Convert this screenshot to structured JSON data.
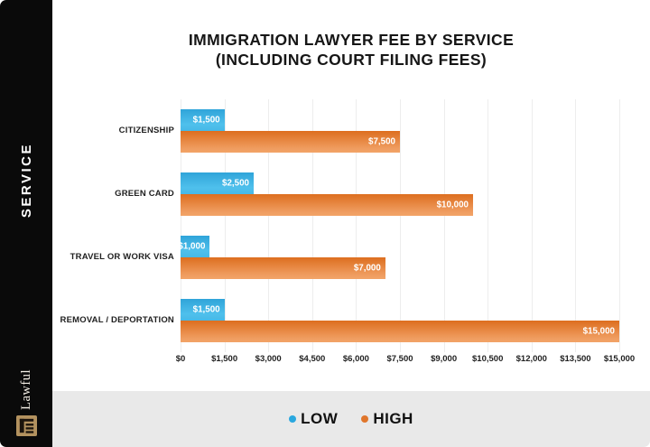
{
  "title": {
    "line1": "IMMIGRATION LAWYER FEE BY SERVICE",
    "line2": "(INCLUDING COURT FILING FEES)"
  },
  "sidebar": {
    "label": "SERVICE",
    "brand_name": "Lawful",
    "logo_icon": "courthouse-icon",
    "background": "#0a0a0a",
    "logo_color": "#b3925f"
  },
  "legend": {
    "items": [
      {
        "label": "LOW",
        "color": "#2aa8df"
      },
      {
        "label": "HIGH",
        "color": "#e0762c"
      }
    ],
    "background": "#e9e9e9"
  },
  "colors": {
    "low_top": "#2fa4d9",
    "low_bottom": "#4fc0ec",
    "high_top": "#dd6e1f",
    "high_bottom": "#f2a468",
    "gridline": "#ededed",
    "text": "#1f1f1f"
  },
  "chart_data": {
    "type": "bar",
    "orientation": "horizontal",
    "title": "IMMIGRATION LAWYER FEE BY SERVICE (INCLUDING COURT FILING FEES)",
    "categories": [
      "CITIZENSHIP",
      "GREEN CARD",
      "TRAVEL OR WORK VISA",
      "REMOVAL / DEPORTATION"
    ],
    "series": [
      {
        "name": "LOW",
        "values": [
          1500,
          2500,
          1000,
          1500
        ],
        "labels": [
          "$1,500",
          "$2,500",
          "$1,000",
          "$1,500"
        ]
      },
      {
        "name": "HIGH",
        "values": [
          7500,
          10000,
          7000,
          15000
        ],
        "labels": [
          "$7,500",
          "$10,000",
          "$7,000",
          "$15,000"
        ]
      }
    ],
    "xlim": [
      0,
      15000
    ],
    "x_ticks": [
      0,
      1500,
      3000,
      4500,
      6000,
      7500,
      9000,
      10500,
      12000,
      13500,
      15000
    ],
    "x_tick_labels": [
      "$0",
      "$1,500",
      "$3,000",
      "$4,500",
      "$6,000",
      "$7,500",
      "$9,000",
      "$10,500",
      "$12,000",
      "$13,500",
      "$15,000"
    ],
    "grid": true,
    "legend_position": "bottom"
  }
}
